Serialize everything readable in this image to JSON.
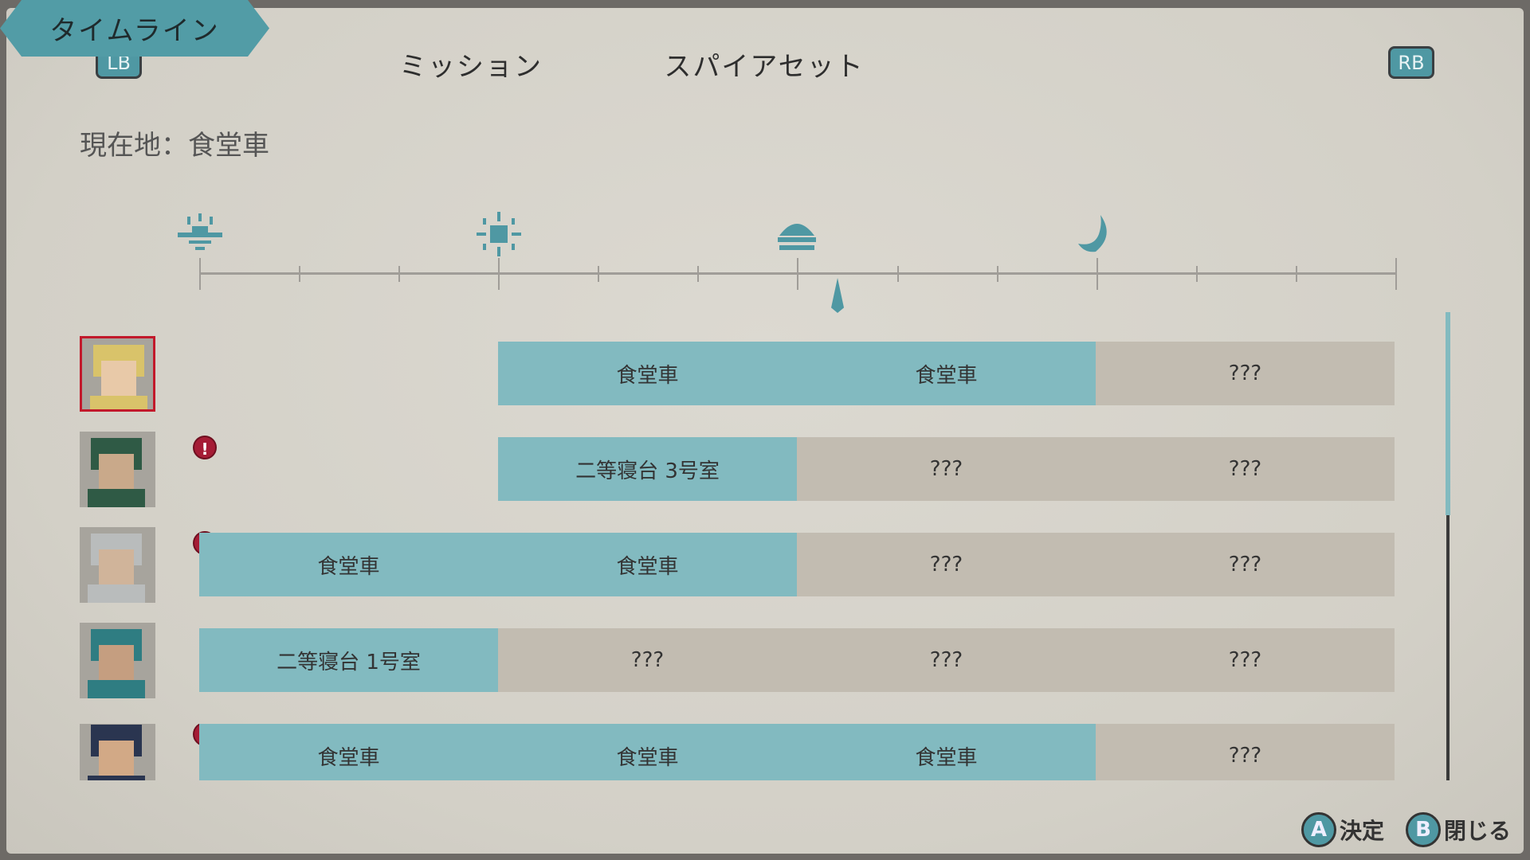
{
  "header": {
    "lb": "LB",
    "rb": "RB",
    "tabs": [
      {
        "label": "ミッション",
        "active": false
      },
      {
        "label": "スパイアセット",
        "active": false
      },
      {
        "label": "タイムライン",
        "active": true
      }
    ]
  },
  "location": "現在地：食堂車",
  "timeline": {
    "time_icons": [
      "sunrise-icon",
      "sun-icon",
      "sunset-icon",
      "moon-icon"
    ],
    "current_position_fraction": 0.533
  },
  "rows": [
    {
      "portrait": "blonde-woman",
      "selected": true,
      "alert": false,
      "cells": [
        "",
        "食堂車",
        "食堂車",
        "???"
      ]
    },
    {
      "portrait": "glasses-man",
      "selected": false,
      "alert": true,
      "cells": [
        "",
        "二等寝台 3号室",
        "???",
        "???"
      ]
    },
    {
      "portrait": "old-man",
      "selected": false,
      "alert": true,
      "cells": [
        "食堂車",
        "食堂車",
        "???",
        "???"
      ]
    },
    {
      "portrait": "teal-hair-woman",
      "selected": false,
      "alert": false,
      "cells": [
        "二等寝台 1号室",
        "???",
        "???",
        "???"
      ]
    },
    {
      "portrait": "conductor",
      "selected": false,
      "alert": true,
      "cells": [
        "食堂車",
        "食堂車",
        "食堂車",
        "???"
      ]
    }
  ],
  "alert_symbol": "!",
  "footer": {
    "a_key": "A",
    "a_label": "決定",
    "b_key": "B",
    "b_label": "閉じる"
  },
  "colors": {
    "accent": "#529ca6",
    "known": "#82bac0",
    "unknown": "#c2bcb1",
    "alert": "#a51c35"
  }
}
